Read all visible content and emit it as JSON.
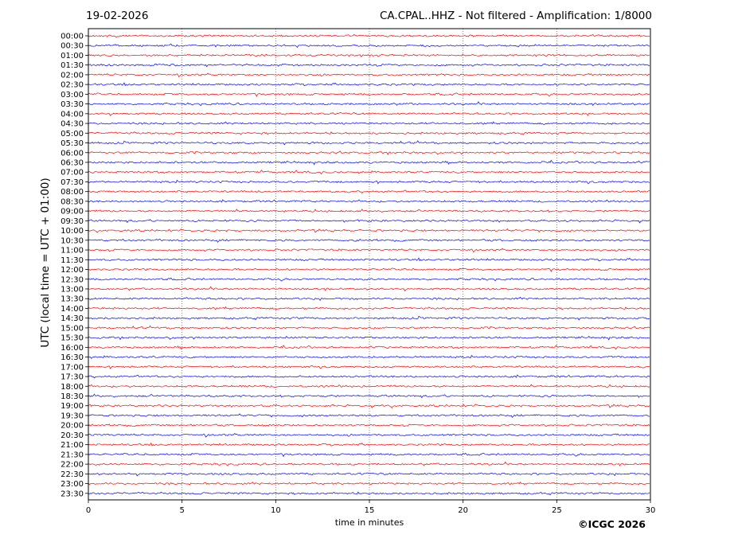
{
  "header": {
    "date": "19-02-2026",
    "title": "CA.CPAL..HHZ - Not filtered - Amplification: 1/8000"
  },
  "footer": {
    "copyright": "©ICGC 2026"
  },
  "chart_data": {
    "type": "line",
    "title": "CA.CPAL..HHZ - Not filtered - Amplification: 1/8000",
    "subtitle": "19-02-2026",
    "xlabel": "time in minutes",
    "ylabel": "UTC (local time = UTC + 01:00)",
    "xlim": [
      0,
      30
    ],
    "x_ticks": [
      0,
      5,
      10,
      15,
      20,
      25,
      30
    ],
    "grid": "vertical dotted lines at x ticks",
    "rows": [
      "00:00",
      "00:30",
      "01:00",
      "01:30",
      "02:00",
      "02:30",
      "03:00",
      "03:30",
      "04:00",
      "04:30",
      "05:00",
      "05:30",
      "06:00",
      "06:30",
      "07:00",
      "07:30",
      "08:00",
      "08:30",
      "09:00",
      "09:30",
      "10:00",
      "10:30",
      "11:00",
      "11:30",
      "12:00",
      "12:30",
      "13:00",
      "13:30",
      "14:00",
      "14:30",
      "15:00",
      "15:30",
      "16:00",
      "16:30",
      "17:00",
      "17:30",
      "18:00",
      "18:30",
      "19:00",
      "19:30",
      "20:00",
      "20:30",
      "21:00",
      "21:30",
      "22:00",
      "22:30",
      "23:00",
      "23:30"
    ],
    "trace_colors": [
      "#ff0000",
      "#0000ff"
    ],
    "trace_kind": "continuous low-amplitude seismic noise, colors alternating per row"
  }
}
